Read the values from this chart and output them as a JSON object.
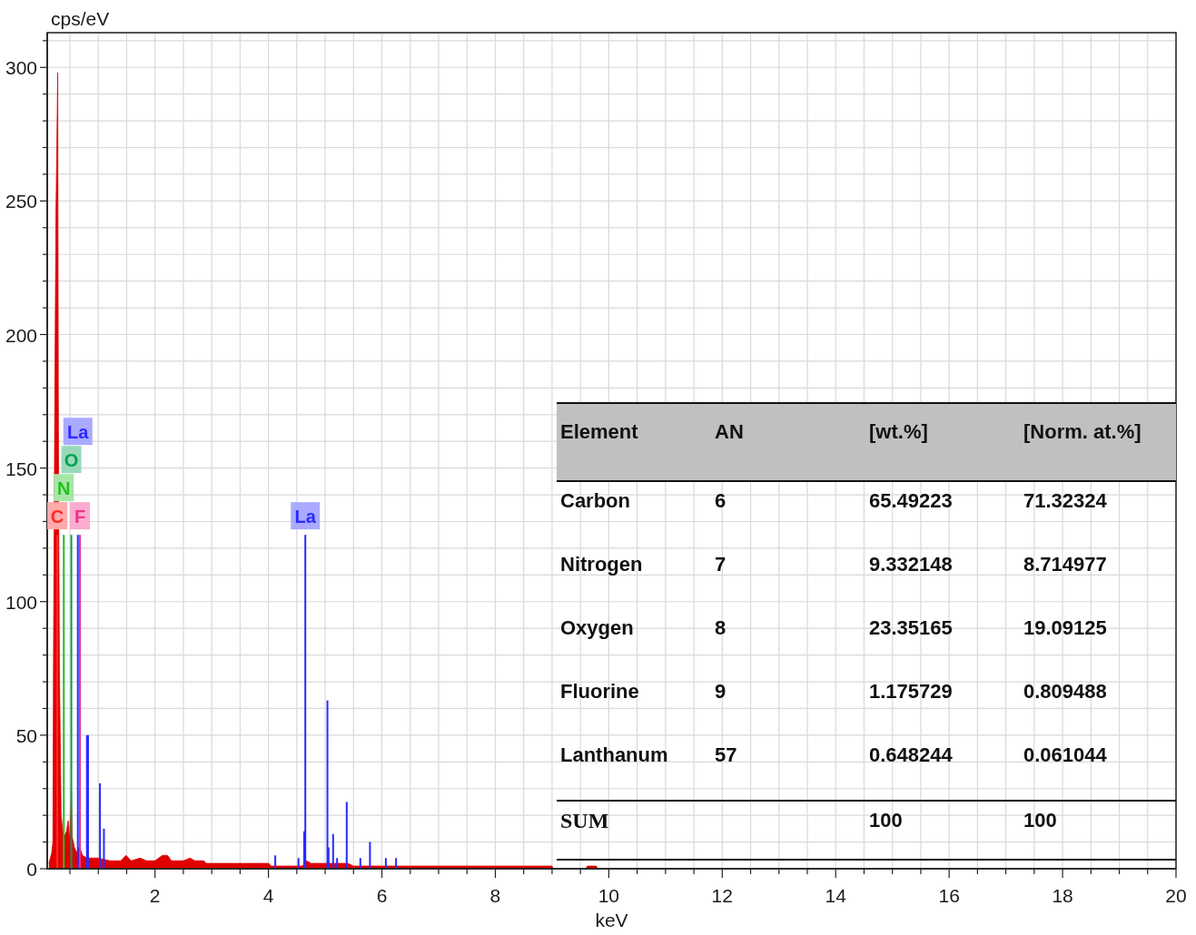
{
  "chart_data": [
    {
      "type": "area",
      "xlabel": "keV",
      "ylabel": "cps/eV",
      "xlim": [
        0.1,
        20
      ],
      "ylim": [
        0,
        313
      ],
      "grid": true,
      "xticks": [
        {
          "value": 0.5,
          "label": null
        },
        {
          "value": 1,
          "label": null
        },
        {
          "value": 1.5,
          "label": null
        },
        2,
        {
          "value": 2.5,
          "label": null
        },
        {
          "value": 3,
          "label": null
        },
        {
          "value": 3.5,
          "label": null
        },
        4,
        {
          "value": 4.5,
          "label": null
        },
        {
          "value": 5,
          "label": null
        },
        {
          "value": 5.5,
          "label": null
        },
        6,
        {
          "value": 6.5,
          "label": null
        },
        {
          "value": 7,
          "label": null
        },
        {
          "value": 7.5,
          "label": null
        },
        8,
        {
          "value": 8.5,
          "label": null
        },
        {
          "value": 9,
          "label": null
        },
        {
          "value": 9.5,
          "label": null
        },
        10,
        {
          "value": 10.5,
          "label": null
        },
        {
          "value": 11,
          "label": null
        },
        {
          "value": 11.5,
          "label": null
        },
        12,
        {
          "value": 12.5,
          "label": null
        },
        {
          "value": 13,
          "label": null
        },
        {
          "value": 13.5,
          "label": null
        },
        14,
        {
          "value": 14.5,
          "label": null
        },
        {
          "value": 15,
          "label": null
        },
        {
          "value": 15.5,
          "label": null
        },
        16,
        {
          "value": 16.5,
          "label": null
        },
        {
          "value": 17,
          "label": null
        },
        {
          "value": 17.5,
          "label": null
        },
        18,
        {
          "value": 18.5,
          "label": null
        },
        {
          "value": 19,
          "label": null
        },
        {
          "value": 19.5,
          "label": null
        },
        20
      ],
      "yticks": [
        0,
        {
          "value": 10,
          "label": null
        },
        {
          "value": 20,
          "label": null
        },
        {
          "value": 30,
          "label": null
        },
        {
          "value": 40,
          "label": null
        },
        50,
        {
          "value": 60,
          "label": null
        },
        {
          "value": 70,
          "label": null
        },
        {
          "value": 80,
          "label": null
        },
        {
          "value": 90,
          "label": null
        },
        100,
        {
          "value": 110,
          "label": null
        },
        {
          "value": 120,
          "label": null
        },
        {
          "value": 130,
          "label": null
        },
        {
          "value": 140,
          "label": null
        },
        150,
        {
          "value": 160,
          "label": null
        },
        {
          "value": 170,
          "label": null
        },
        {
          "value": 180,
          "label": null
        },
        {
          "value": 190,
          "label": null
        },
        200,
        {
          "value": 210,
          "label": null
        },
        {
          "value": 220,
          "label": null
        },
        {
          "value": 230,
          "label": null
        },
        {
          "value": 240,
          "label": null
        },
        250,
        {
          "value": 260,
          "label": null
        },
        {
          "value": 270,
          "label": null
        },
        {
          "value": 280,
          "label": null
        },
        {
          "value": 290,
          "label": null
        },
        300,
        {
          "value": 310,
          "label": null
        }
      ],
      "series": [
        {
          "type": "area",
          "color": "#e00000",
          "x": [
            0.13,
            0.18,
            0.2,
            0.21,
            0.235,
            0.255,
            0.27,
            0.285,
            0.295,
            0.305,
            0.315,
            0.33,
            0.345,
            0.37,
            0.4,
            0.44,
            0.47,
            0.49,
            0.515,
            0.525,
            0.54,
            0.58,
            0.62,
            0.66,
            0.69,
            0.72,
            0.8,
            0.9,
            1.0,
            1.2,
            1.4,
            1.49,
            1.58,
            1.74,
            1.85,
            2.0,
            2.13,
            2.22,
            2.29,
            2.5,
            2.62,
            2.7,
            2.86,
            2.9,
            3.5,
            3.55,
            4.0,
            4.05,
            4.6,
            4.67,
            4.75,
            5.0,
            5.4,
            5.5,
            7.0,
            9.0,
            9.02,
            9.3,
            9.6,
            9.62,
            9.78,
            9.8
          ],
          "values": [
            2,
            6,
            10,
            76,
            181,
            247,
            271,
            298,
            180,
            120,
            75,
            47,
            20,
            15,
            12,
            14,
            18,
            10,
            22,
            30,
            12,
            8,
            6,
            8,
            7,
            5,
            4,
            4,
            4,
            3,
            3,
            5,
            3,
            4,
            3,
            3,
            5,
            5,
            3,
            3,
            4,
            3,
            3,
            2,
            2,
            2,
            2,
            1,
            1,
            3,
            2,
            2,
            2,
            1,
            1,
            1,
            0,
            null,
            0,
            1,
            1,
            0
          ]
        },
        {
          "type": "bar",
          "name": "C",
          "color": "#ff2a2a",
          "x": [
            0.277
          ],
          "values": [
            125
          ]
        },
        {
          "type": "bar",
          "name": "N",
          "color": "#22c022",
          "x": [
            0.392
          ],
          "values": [
            125
          ]
        },
        {
          "type": "bar",
          "name": "O",
          "color": "#00a050",
          "x": [
            0.525
          ],
          "values": [
            125
          ]
        },
        {
          "type": "bar",
          "name": "F",
          "color": "#f0308a",
          "x": [
            0.677
          ],
          "values": [
            125
          ]
        },
        {
          "type": "bar",
          "name": "La",
          "color": "#2a2aff",
          "x": [
            0.64,
            0.8,
            0.82,
            1.03,
            1.1,
            4.12,
            4.53,
            4.63,
            4.65,
            5.04,
            5.06,
            5.14,
            5.21,
            5.38,
            5.62,
            5.79,
            6.07,
            6.25
          ],
          "values": [
            125,
            50,
            50,
            32,
            15,
            5,
            4,
            14,
            125,
            63,
            8,
            13,
            4,
            25,
            4,
            10,
            4,
            4
          ]
        }
      ]
    },
    {
      "type": "other",
      "xlabel": "Element",
      "categories": [
        "Carbon",
        "Nitrogen",
        "Oxygen",
        "Fluorine",
        "Lanthanum",
        "SUM"
      ],
      "data_labels": true,
      "series": [
        {
          "name": "AN",
          "values": [
            6,
            7,
            8,
            9,
            57,
            null
          ]
        },
        {
          "name": "[wt.%]",
          "values": [
            65.49223,
            9.332148,
            23.35165,
            1.175729,
            0.648244,
            100
          ]
        },
        {
          "name": "[Norm. at.%]",
          "values": [
            71.32324,
            8.714977,
            19.09125,
            0.809488,
            0.061044,
            100
          ]
        }
      ]
    }
  ]
}
